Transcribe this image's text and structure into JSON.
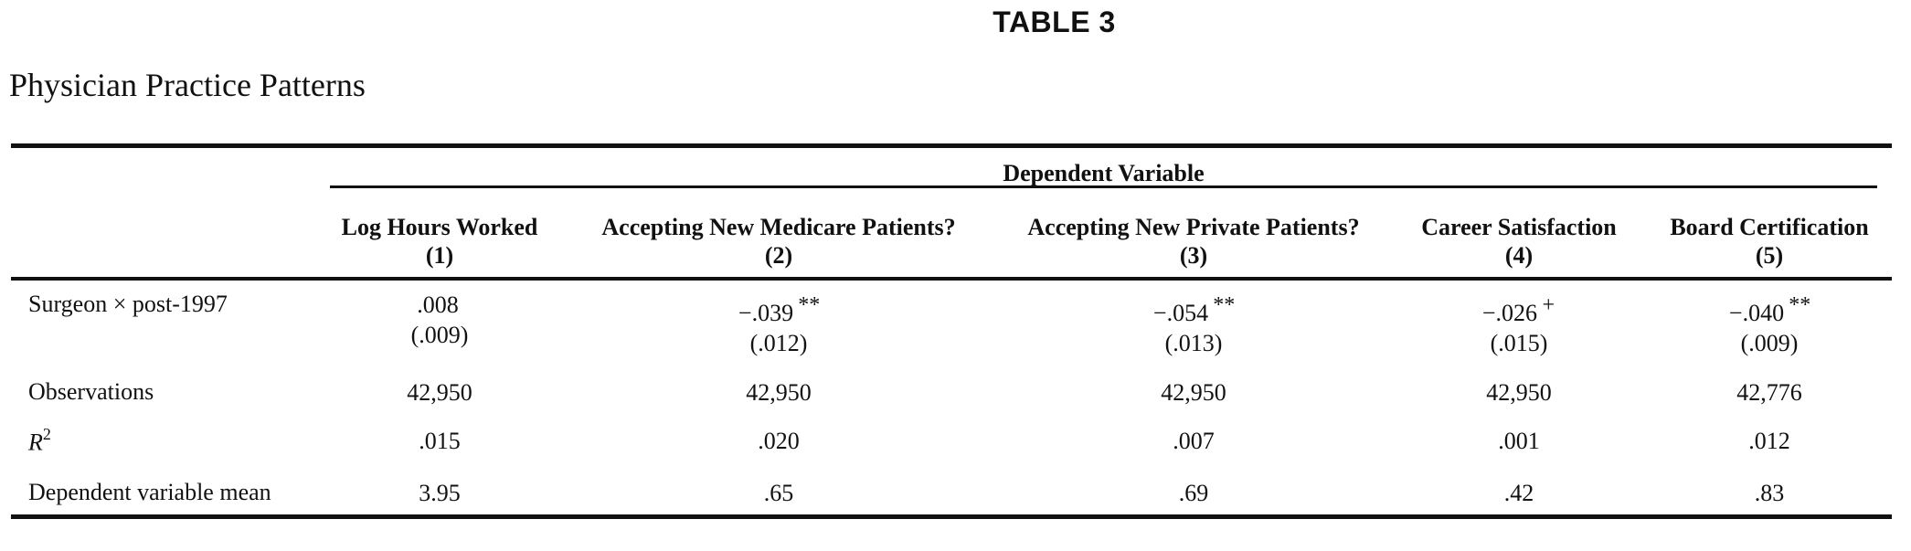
{
  "table_label": "TABLE 3",
  "caption": "Physician Practice Patterns",
  "dependent_variable_label": "Dependent Variable",
  "columns": [
    {
      "title": "Log Hours Worked",
      "number": "(1)"
    },
    {
      "title": "Accepting New Medicare Patients?",
      "number": "(2)"
    },
    {
      "title": "Accepting New Private Patients?",
      "number": "(3)"
    },
    {
      "title": "Career Satisfaction",
      "number": "(4)"
    },
    {
      "title": "Board Certification",
      "number": "(5)"
    }
  ],
  "rows": {
    "surgeon": {
      "label": "Surgeon × post-1997",
      "cells": [
        {
          "coef": ".008",
          "sig": "",
          "se": "(.009)"
        },
        {
          "coef": "−.039",
          "sig": "**",
          "se": "(.012)"
        },
        {
          "coef": "−.054",
          "sig": "**",
          "se": "(.013)"
        },
        {
          "coef": "−.026",
          "sig": "+",
          "se": "(.015)"
        },
        {
          "coef": "−.040",
          "sig": "**",
          "se": "(.009)"
        }
      ]
    },
    "observations": {
      "label": "Observations",
      "values": [
        "42,950",
        "42,950",
        "42,950",
        "42,950",
        "42,776"
      ]
    },
    "r2": {
      "label_main": "R",
      "label_sup": "2",
      "values": [
        ".015",
        ".020",
        ".007",
        ".001",
        ".012"
      ]
    },
    "dv_mean": {
      "label": "Dependent variable mean",
      "values": [
        "3.95",
        ".65",
        ".69",
        ".42",
        ".83"
      ]
    }
  }
}
